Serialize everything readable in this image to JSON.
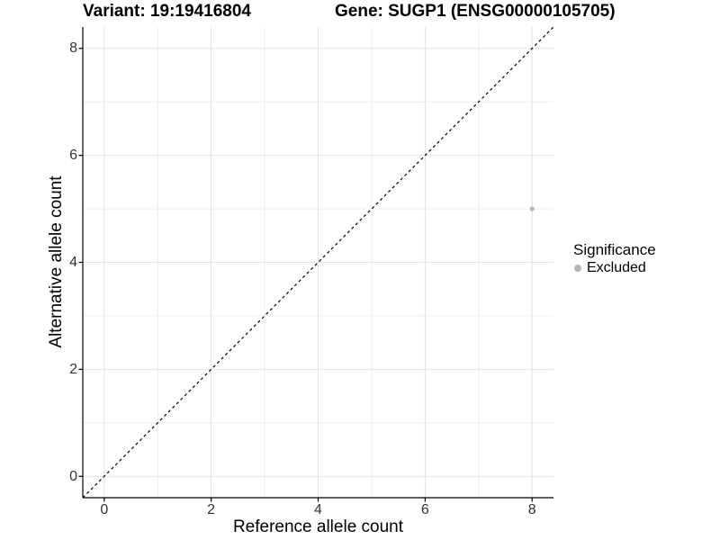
{
  "chart_data": {
    "type": "scatter",
    "title_left": "Variant: 19:19416804",
    "title_right": "Gene: SUGP1 (ENSG00000105705)",
    "xlabel": "Reference allele count",
    "ylabel": "Alternative allele count",
    "xlim": [
      -0.4,
      8.4
    ],
    "ylim": [
      -0.4,
      8.4
    ],
    "x_ticks": [
      0,
      2,
      4,
      6,
      8
    ],
    "y_ticks": [
      0,
      2,
      4,
      6,
      8
    ],
    "x_minor_ticks": [
      1,
      3,
      5,
      7
    ],
    "y_minor_ticks": [
      1,
      3,
      5,
      7
    ],
    "grid": true,
    "legend_position": "right",
    "reference_line": {
      "type": "identity",
      "style": "dashed",
      "from": [
        -0.4,
        -0.4
      ],
      "to": [
        8.4,
        8.4
      ]
    },
    "series": [
      {
        "name": "Excluded",
        "color": "#b5b5b5",
        "points": [
          {
            "x": 8,
            "y": 5
          }
        ]
      }
    ],
    "legend": {
      "title": "Significance",
      "entries": [
        {
          "label": "Excluded",
          "color": "#b5b5b5"
        }
      ]
    },
    "colors": {
      "background": "#ffffff",
      "axis_line": "#000000",
      "grid_major": "#e2e2e2",
      "grid_minor": "#eeeeee",
      "tick_label": "#333333",
      "reference_line": "#000000"
    }
  }
}
